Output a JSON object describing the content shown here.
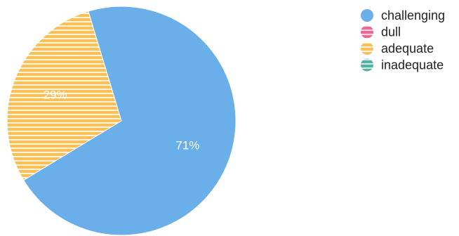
{
  "chart_data": {
    "type": "pie",
    "slices": [
      {
        "label": "challenging",
        "value": 71,
        "label_text": "71%",
        "color": "#6aaeea",
        "pattern": "solid"
      },
      {
        "label": "dull",
        "value": 0,
        "label_text": "",
        "color": "#e96a93",
        "pattern": "striped"
      },
      {
        "label": "adequate",
        "value": 29,
        "label_text": "29%",
        "color": "#f8c05a",
        "pattern": "striped"
      },
      {
        "label": "inadequate",
        "value": 0,
        "label_text": "",
        "color": "#57b2a5",
        "pattern": "striped"
      }
    ],
    "legend": {
      "position": "top-right",
      "items": [
        "challenging",
        "dull",
        "adequate",
        "inadequate"
      ]
    }
  }
}
